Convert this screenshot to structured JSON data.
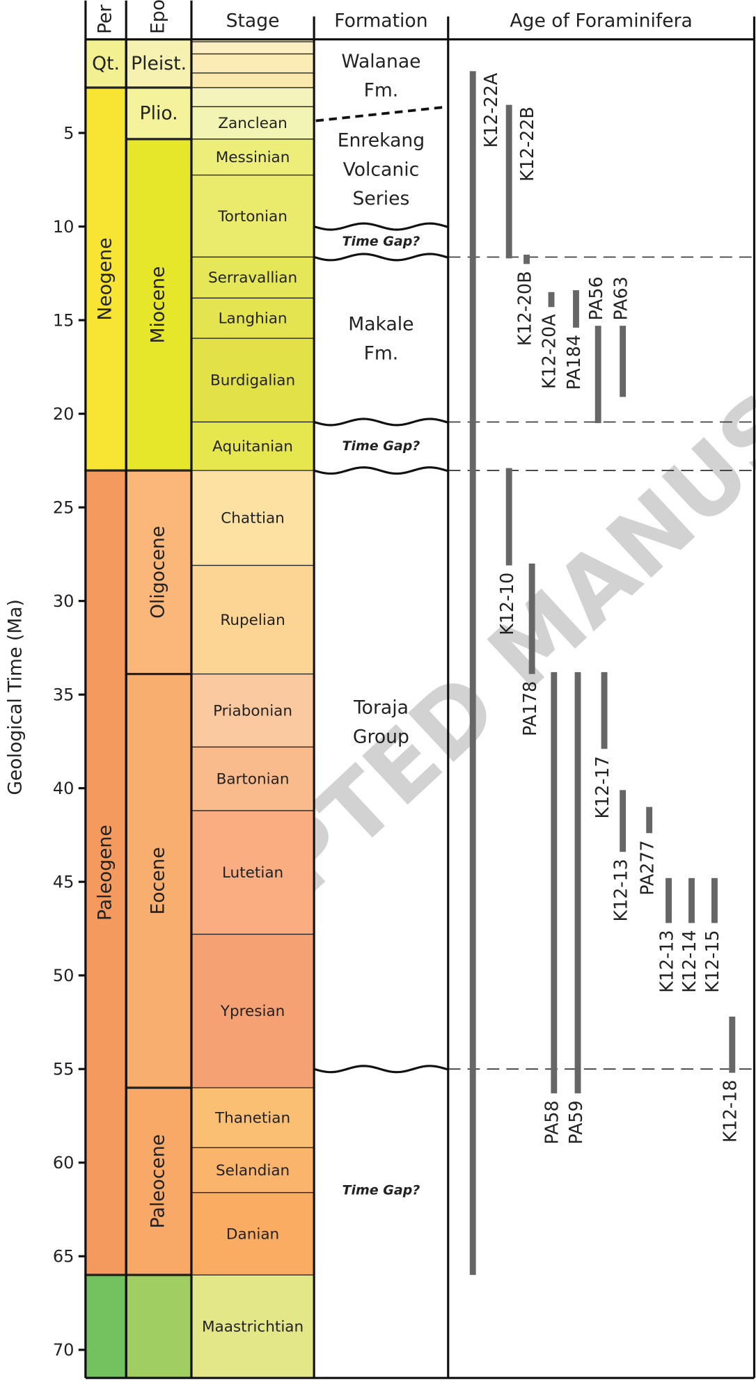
{
  "chart_data": {
    "type": "timescale",
    "y_label": "Geological Time (Ma)",
    "ylim": [
      0,
      71.5
    ],
    "yticks": [
      5,
      10,
      15,
      20,
      25,
      30,
      35,
      40,
      45,
      50,
      55,
      60,
      65,
      70
    ],
    "headers": [
      "Per",
      "Epo",
      "Stage",
      "Formation",
      "Age of Foraminifera"
    ],
    "periods": [
      {
        "name": "Qt.",
        "start": 0,
        "end": 2.58,
        "color": "#f2f091"
      },
      {
        "name": "Neogene",
        "start": 2.58,
        "end": 23.03,
        "color": "#f8e433"
      },
      {
        "name": "Paleogene",
        "start": 23.03,
        "end": 66,
        "color": "#f59a5e"
      },
      {
        "name": null,
        "start": 66,
        "end": 71.5,
        "color": "#74c160"
      }
    ],
    "epochs": [
      {
        "name": "Pleist.",
        "start": 0,
        "end": 2.58,
        "color": "#f6f1b0"
      },
      {
        "name": "Plio.",
        "start": 2.58,
        "end": 5.33,
        "color": "#f5f29c"
      },
      {
        "name": "Miocene",
        "start": 5.33,
        "end": 23.03,
        "color": "#e6e62a"
      },
      {
        "name": "Oligocene",
        "start": 23.03,
        "end": 33.9,
        "color": "#fbb77a"
      },
      {
        "name": "Eocene",
        "start": 33.9,
        "end": 56,
        "color": "#f8ae6e"
      },
      {
        "name": "Paleocene",
        "start": 56,
        "end": 66,
        "color": "#f8a968"
      },
      {
        "name": null,
        "start": 66,
        "end": 71.5,
        "color": "#a0ce62"
      }
    ],
    "stages": [
      {
        "name": null,
        "start": 0,
        "end": 0.13,
        "color": "#fdf3cc"
      },
      {
        "name": null,
        "start": 0.13,
        "end": 0.78,
        "color": "#fbeec0"
      },
      {
        "name": null,
        "start": 0.78,
        "end": 1.8,
        "color": "#fbecb6"
      },
      {
        "name": null,
        "start": 1.8,
        "end": 2.58,
        "color": "#fae9ac"
      },
      {
        "name": null,
        "start": 2.58,
        "end": 3.6,
        "color": "#f4f3bc"
      },
      {
        "name": "Zanclean",
        "start": 3.6,
        "end": 5.33,
        "color": "#f2f4b4"
      },
      {
        "name": "Messinian",
        "start": 5.33,
        "end": 7.25,
        "color": "#eded7a"
      },
      {
        "name": "Tortonian",
        "start": 7.25,
        "end": 11.63,
        "color": "#eaea6c"
      },
      {
        "name": "Serravallian",
        "start": 11.63,
        "end": 13.82,
        "color": "#e6e659"
      },
      {
        "name": "Langhian",
        "start": 13.82,
        "end": 15.97,
        "color": "#e4e450"
      },
      {
        "name": "Burdigalian",
        "start": 15.97,
        "end": 20.44,
        "color": "#e2e248"
      },
      {
        "name": "Aquitanian",
        "start": 20.44,
        "end": 23.03,
        "color": "#e6e64f"
      },
      {
        "name": "Chattian",
        "start": 23.03,
        "end": 28.1,
        "color": "#fde1a2"
      },
      {
        "name": "Rupelian",
        "start": 28.1,
        "end": 33.9,
        "color": "#fcd594"
      },
      {
        "name": "Priabonian",
        "start": 33.9,
        "end": 37.8,
        "color": "#fbc9a0"
      },
      {
        "name": "Bartonian",
        "start": 37.8,
        "end": 41.2,
        "color": "#f9bb8b"
      },
      {
        "name": "Lutetian",
        "start": 41.2,
        "end": 47.8,
        "color": "#f9ad80"
      },
      {
        "name": "Ypresian",
        "start": 47.8,
        "end": 56,
        "color": "#f6a174"
      },
      {
        "name": "Thanetian",
        "start": 56,
        "end": 59.2,
        "color": "#fbbf74"
      },
      {
        "name": "Selandian",
        "start": 59.2,
        "end": 61.6,
        "color": "#fbb46b"
      },
      {
        "name": "Danian",
        "start": 61.6,
        "end": 66,
        "color": "#fbac63"
      },
      {
        "name": "Maastrichtian",
        "start": 66,
        "end": 71.5,
        "color": "#e4e788"
      }
    ],
    "formations": [
      {
        "lines": [
          "Walanae",
          "Fm."
        ],
        "start": 0,
        "end": 4
      },
      {
        "lines": [
          "Enrekang",
          "Volcanic",
          "Series"
        ],
        "start": 4,
        "end": 10
      },
      {
        "lines": [
          "Time Gap?"
        ],
        "start": 10,
        "end": 11.63,
        "gap": true
      },
      {
        "lines": [
          "Makale",
          "Fm."
        ],
        "start": 11.63,
        "end": 20.44
      },
      {
        "lines": [
          "Time Gap?"
        ],
        "start": 20.44,
        "end": 23.03,
        "gap": true
      },
      {
        "lines": [
          "Toraja",
          "Group"
        ],
        "start": 23.03,
        "end": 50
      },
      {
        "lines": [
          "Time Gap?"
        ],
        "start": 55,
        "end": 68,
        "gap": true
      }
    ],
    "contact": [
      4.35,
      3.6
    ],
    "unconformities": [
      10,
      11.63,
      20.44,
      23.03,
      55
    ],
    "dashed_lines": [
      11.63,
      20.44,
      23.03,
      55
    ],
    "samples": [
      {
        "name": "K12-22A",
        "start": 1.7,
        "end": 66
      },
      {
        "name": "K12-22B",
        "start": 3.5,
        "end": 11.7
      },
      {
        "name": "K12-20B",
        "start": 11.5,
        "end": 12
      },
      {
        "name": "K12-20A",
        "start": 13.5,
        "end": 14.3
      },
      {
        "name": "PA184",
        "start": 13.4,
        "end": 15.4
      },
      {
        "name": "PA56",
        "start": 15.3,
        "end": 20.5
      },
      {
        "name": "PA63",
        "start": 15.3,
        "end": 19.1
      },
      {
        "name": "K12-10",
        "start": 22.9,
        "end": 28.1
      },
      {
        "name": "PA178",
        "start": 28,
        "end": 33.9
      },
      {
        "name": "PA58",
        "start": 33.8,
        "end": 56.3
      },
      {
        "name": "PA59",
        "start": 33.8,
        "end": 56.3
      },
      {
        "name": "K12-17",
        "start": 33.8,
        "end": 37.9
      },
      {
        "name": "K12-13",
        "start": 40.1,
        "end": 43.4
      },
      {
        "name": "PA277",
        "start": 41,
        "end": 42.4
      },
      {
        "name": "K12-13",
        "start": 44.8,
        "end": 47.2
      },
      {
        "name": "K12-14",
        "start": 44.8,
        "end": 47.2
      },
      {
        "name": "K12-15",
        "start": 44.8,
        "end": 47.2
      },
      {
        "name": "K12-18",
        "start": 52.2,
        "end": 55.2
      }
    ],
    "bar_color": "#666666",
    "watermark": "PTED MANUS"
  }
}
